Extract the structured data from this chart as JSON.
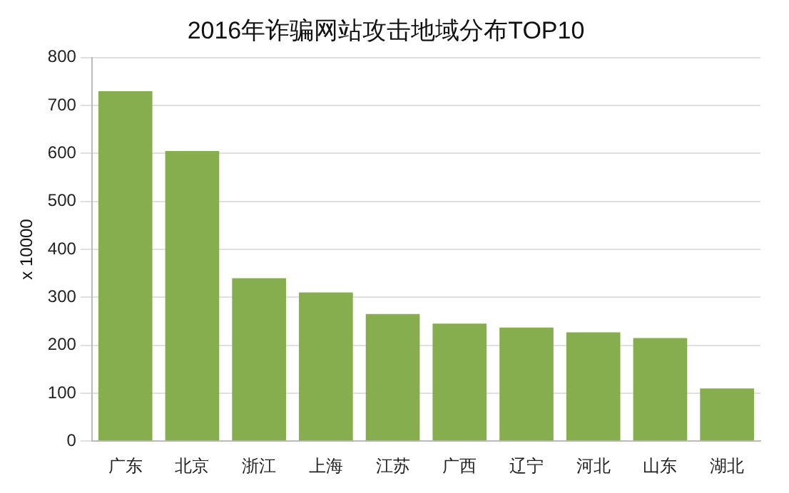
{
  "chart_data": {
    "type": "bar",
    "title": "2016年诈骗网站攻击地域分布TOP10",
    "ylabel": "x 10000",
    "categories": [
      "广东",
      "北京",
      "浙江",
      "上海",
      "江苏",
      "广西",
      "辽宁",
      "河北",
      "山东",
      "湖北"
    ],
    "values": [
      730,
      605,
      340,
      310,
      265,
      245,
      237,
      227,
      215,
      110
    ],
    "color": "#86ad4e",
    "ylim": [
      0,
      800
    ],
    "yticks": [
      0,
      100,
      200,
      300,
      400,
      500,
      600,
      700,
      800
    ],
    "grid": "y"
  }
}
